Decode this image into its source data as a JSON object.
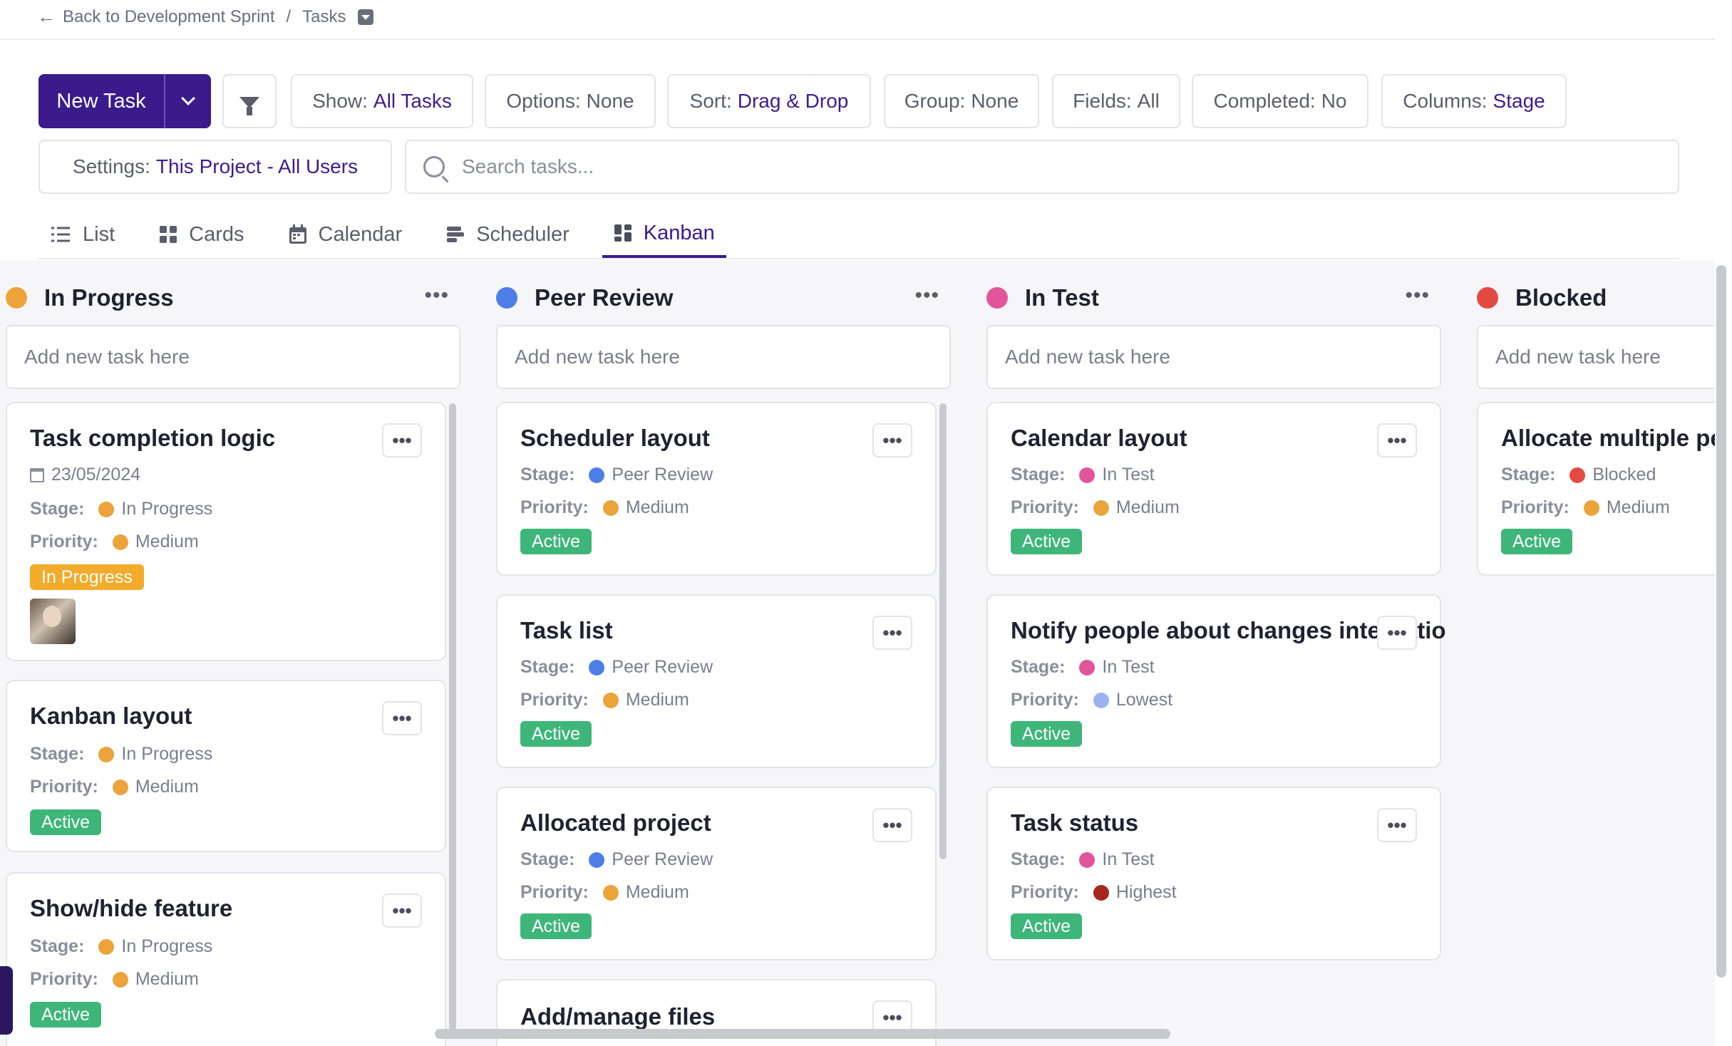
{
  "breadcrumb": {
    "back_label": "Back to Development Sprint",
    "separator": "/",
    "current": "Tasks"
  },
  "toolbar": {
    "new_task_label": "New Task",
    "show": {
      "label": "Show:",
      "value": "All Tasks"
    },
    "options": {
      "label": "Options:",
      "value": "None"
    },
    "sort": {
      "label": "Sort:",
      "value": "Drag & Drop"
    },
    "group": {
      "label": "Group:",
      "value": "None"
    },
    "fields": {
      "label": "Fields:",
      "value": "All"
    },
    "completed": {
      "label": "Completed:",
      "value": "No"
    },
    "columns": {
      "label": "Columns:",
      "value": "Stage"
    },
    "settings": {
      "label": "Settings:",
      "value": "This Project - All Users"
    },
    "search_placeholder": "Search tasks..."
  },
  "tabs": [
    {
      "label": "List",
      "icon": "list-icon"
    },
    {
      "label": "Cards",
      "icon": "cards-icon"
    },
    {
      "label": "Calendar",
      "icon": "calendar-icon"
    },
    {
      "label": "Scheduler",
      "icon": "scheduler-icon"
    },
    {
      "label": "Kanban",
      "icon": "kanban-icon",
      "active": true
    }
  ],
  "colors": {
    "accent": "#3b1a8c",
    "in_progress": "#eba33a",
    "peer_review": "#4d7ee8",
    "in_test": "#e2559a",
    "blocked": "#e44a42",
    "medium": "#eba33a",
    "lowest": "#9bb3f0",
    "highest": "#a8261e",
    "active_badge": "#3eb67a"
  },
  "board": {
    "add_placeholder": "Add new task here",
    "field_labels": {
      "stage": "Stage:",
      "priority": "Priority:"
    },
    "columns": [
      {
        "name": "In Progress",
        "cards": [
          {
            "title": "Task completion logic",
            "date": "23/05/2024",
            "stage": "In Progress",
            "priority": "Medium",
            "badge": "In Progress",
            "has_avatar": true
          },
          {
            "title": "Kanban layout",
            "stage": "In Progress",
            "priority": "Medium",
            "badge": "Active"
          },
          {
            "title": "Show/hide feature",
            "stage": "In Progress",
            "priority": "Medium",
            "badge": "Active"
          }
        ]
      },
      {
        "name": "Peer Review",
        "cards": [
          {
            "title": "Scheduler layout",
            "stage": "Peer Review",
            "priority": "Medium",
            "badge": "Active"
          },
          {
            "title": "Task list",
            "stage": "Peer Review",
            "priority": "Medium",
            "badge": "Active"
          },
          {
            "title": "Allocated project",
            "stage": "Peer Review",
            "priority": "Medium",
            "badge": "Active"
          },
          {
            "title": "Add/manage files"
          }
        ]
      },
      {
        "name": "In Test",
        "cards": [
          {
            "title": "Calendar layout",
            "stage": "In Test",
            "priority": "Medium",
            "badge": "Active"
          },
          {
            "title": "Notify people about changes integratio",
            "stage": "In Test",
            "priority": "Lowest",
            "badge": "Active"
          },
          {
            "title": "Task status",
            "stage": "In Test",
            "priority": "Highest",
            "badge": "Active"
          }
        ]
      },
      {
        "name": "Blocked",
        "cards": [
          {
            "title": "Allocate multiple pe",
            "stage": "Blocked",
            "priority": "Medium",
            "badge": "Active"
          }
        ]
      }
    ]
  }
}
